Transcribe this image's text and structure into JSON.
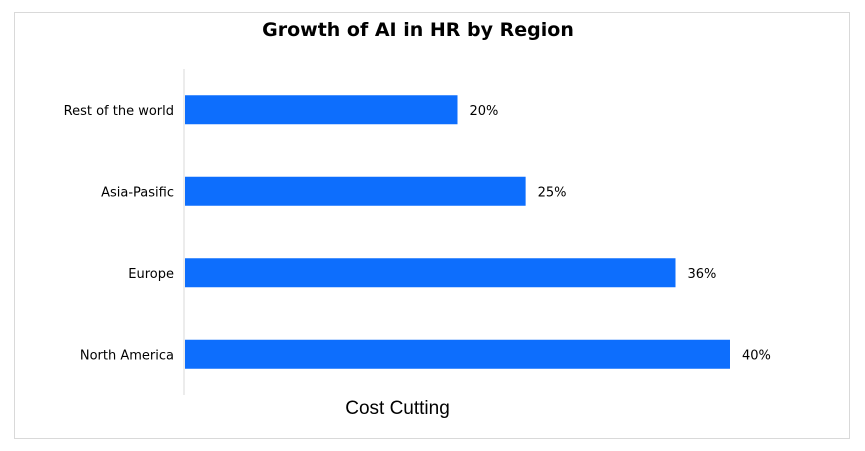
{
  "chart_data": {
    "type": "bar",
    "orientation": "horizontal",
    "title": "Growth of AI in HR by Region",
    "xlabel": "Cost Cutting",
    "ylabel": "",
    "categories": [
      "North America",
      "Europe",
      "Asia-Pasific",
      "Rest of the world"
    ],
    "values": [
      40,
      36,
      25,
      20
    ],
    "data_labels": [
      "40%",
      "36%",
      "25%",
      "20%"
    ],
    "xlim": [
      0,
      40
    ],
    "bar_color": "#0D6EFD",
    "grid": false,
    "legend": "none"
  }
}
